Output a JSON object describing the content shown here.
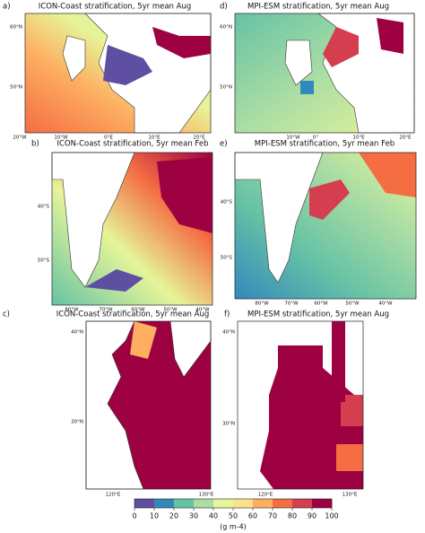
{
  "panels": [
    {
      "label": "a)",
      "title": "ICON-Coast stratification, 5yr mean Aug",
      "lat_labels": [
        "60°N",
        "50°N"
      ],
      "lon_labels": [
        "20°W",
        "10°W",
        "0°E",
        "10°E",
        "20°E"
      ]
    },
    {
      "label": "d)",
      "title": "MPI-ESM stratification, 5yr mean Aug",
      "lat_labels": [
        "60°N",
        "50°N"
      ],
      "lon_labels": [
        "10°W",
        "0°",
        "10°E",
        "20°E"
      ]
    },
    {
      "label": "b)",
      "title": "ICON-Coast stratification, 5yr mean Feb",
      "lat_labels": [
        "40°S",
        "50°S"
      ],
      "lon_labels": [
        "80°W",
        "70°W",
        "60°W",
        "50°W",
        "40°W"
      ]
    },
    {
      "label": "e)",
      "title": "MPI-ESM stratification, 5yr mean Feb",
      "lat_labels": [
        "40°S",
        "50°S"
      ],
      "lon_labels": [
        "80°W",
        "70°W",
        "60°W",
        "50°W",
        "40°W"
      ]
    },
    {
      "label": "c)",
      "title": "ICON-Coast stratification, 5yr mean Aug",
      "lat_labels": [
        "40°N",
        "30°N"
      ],
      "lon_labels": [
        "120°E",
        "130°E"
      ]
    },
    {
      "label": "f)",
      "title": "MPI-ESM stratification, 5yr mean Aug",
      "lat_labels": [
        "40°N",
        "30°N"
      ],
      "lon_labels": [
        "120°E",
        "130°E"
      ]
    }
  ],
  "colorbar": {
    "label": "(g m-4)",
    "lim": [
      0,
      100
    ],
    "ticks": [
      0,
      10,
      20,
      30,
      40,
      50,
      60,
      70,
      80,
      90,
      100
    ],
    "colors": [
      "#5e4fa2",
      "#3288bd",
      "#66c2a5",
      "#abdda4",
      "#e6f598",
      "#fee08b",
      "#fdae61",
      "#f46d43",
      "#d53e4f",
      "#9e0142"
    ]
  }
}
